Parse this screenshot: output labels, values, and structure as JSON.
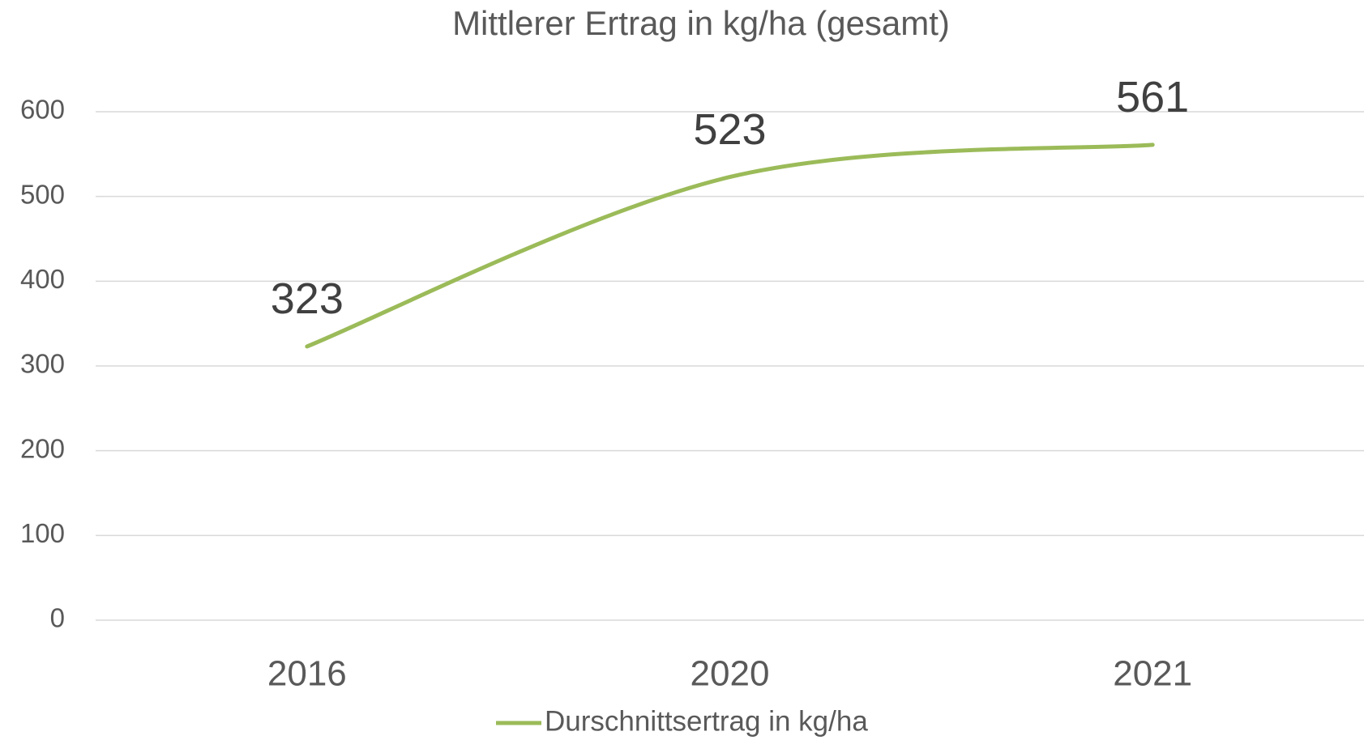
{
  "chart_data": {
    "type": "line",
    "title": "Mittlerer Ertrag in kg/ha (gesamt)",
    "categories": [
      "2016",
      "2020",
      "2021"
    ],
    "series": [
      {
        "name": "Durschnittsertrag in kg/ha",
        "color": "#9bbb59",
        "values": [
          323,
          523,
          561
        ]
      }
    ],
    "ylim": [
      0,
      600
    ],
    "yticks": [
      0,
      100,
      200,
      300,
      400,
      500,
      600
    ],
    "grid": true,
    "smooth": true,
    "legend": "bottom"
  }
}
